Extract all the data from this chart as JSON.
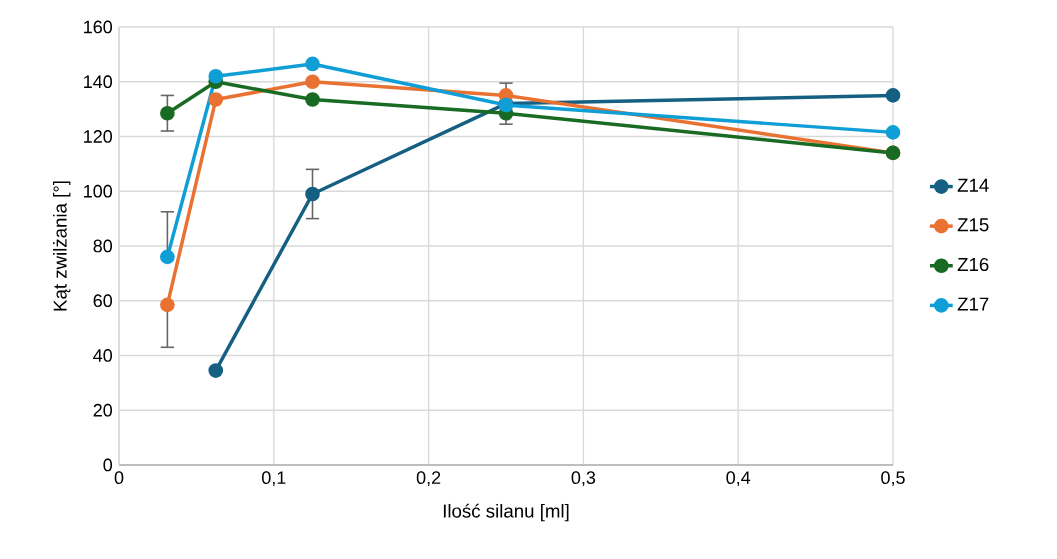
{
  "chart_data": {
    "type": "line",
    "xlabel": "Ilość silanu [ml]",
    "ylabel": "Kąt zwilżania [°]",
    "xlim": [
      0,
      0.5
    ],
    "ylim": [
      0,
      160
    ],
    "xticks": [
      0,
      {
        "value": 0.1,
        "label": "0,1"
      },
      {
        "value": 0.2,
        "label": "0,2"
      },
      {
        "value": 0.3,
        "label": "0,3"
      },
      {
        "value": 0.4,
        "label": "0,4"
      },
      {
        "value": 0.5,
        "label": "0,5"
      }
    ],
    "yticks": [
      0,
      20,
      40,
      60,
      80,
      100,
      120,
      140,
      160
    ],
    "grid": true,
    "legend": "right",
    "marker": "circle",
    "line_style": "solid",
    "series": [
      {
        "name": "Z14",
        "color": "#156082",
        "x": [
          0.0625,
          0.125,
          0.25,
          0.5
        ],
        "values": [
          34.5,
          99,
          132,
          135
        ],
        "errors": [
          null,
          9,
          null,
          null
        ]
      },
      {
        "name": "Z15",
        "color": "#e97132",
        "x": [
          0.03125,
          0.0625,
          0.125,
          0.25,
          0.5
        ],
        "values": [
          58.5,
          133.5,
          140,
          135,
          114
        ],
        "errors": [
          [
            43,
            58.5
          ],
          null,
          null,
          [
            135,
            139.5
          ],
          null
        ]
      },
      {
        "name": "Z16",
        "color": "#196b24",
        "x": [
          0.03125,
          0.0625,
          0.125,
          0.25,
          0.5
        ],
        "values": [
          128.5,
          140,
          133.5,
          128.5,
          114
        ],
        "errors": [
          6.5,
          null,
          null,
          [
            124.5,
            128.5
          ],
          null
        ]
      },
      {
        "name": "Z17",
        "color": "#0f9ed5",
        "x": [
          0.03125,
          0.0625,
          0.125,
          0.25,
          0.5
        ],
        "values": [
          76,
          142,
          146.5,
          131.5,
          121.5
        ],
        "errors": [
          [
            76,
            92.5
          ],
          null,
          null,
          null,
          null
        ]
      }
    ]
  }
}
